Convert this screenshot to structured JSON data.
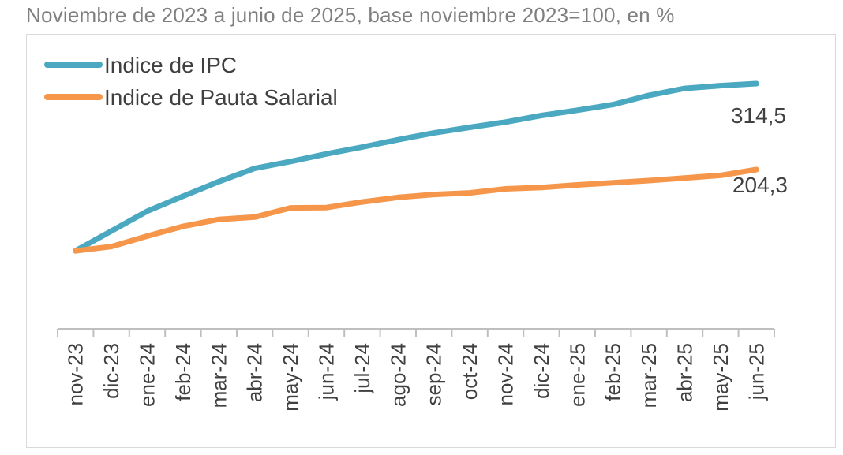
{
  "subtitle": "Noviembre de 2023 a junio de 2025, base noviembre 2023=100, en %",
  "chart_data": {
    "type": "line",
    "x": [
      "nov-23",
      "dic-23",
      "ene-24",
      "feb-24",
      "mar-24",
      "abr-24",
      "may-24",
      "jun-24",
      "jul-24",
      "ago-24",
      "sep-24",
      "oct-24",
      "nov-24",
      "dic-24",
      "ene-25",
      "feb-25",
      "mar-25",
      "abr-25",
      "may-25",
      "jun-25"
    ],
    "series": [
      {
        "name": "Indice de IPC",
        "color": "#4aa8c0",
        "values": [
          100,
          125.5,
          150.9,
          170.1,
          188.8,
          205.8,
          214.6,
          224.3,
          233.1,
          242.5,
          251.2,
          258.4,
          265.1,
          273.5,
          280.3,
          287.6,
          299.4,
          308.3,
          311.9,
          314.5
        ]
      },
      {
        "name": "Indice de Pauta Salarial",
        "color": "#f5964b",
        "values": [
          100,
          105.5,
          118.9,
          131.5,
          140.4,
          143.3,
          155.1,
          155.5,
          162.7,
          168.6,
          172.3,
          174.3,
          179.5,
          181.2,
          184.6,
          187.3,
          190.1,
          193.4,
          196.8,
          204.3
        ]
      }
    ],
    "end_labels": [
      "314,5",
      "204,3"
    ],
    "ylim": [
      0,
      360
    ],
    "grid": false,
    "legend_position": "top-left"
  }
}
